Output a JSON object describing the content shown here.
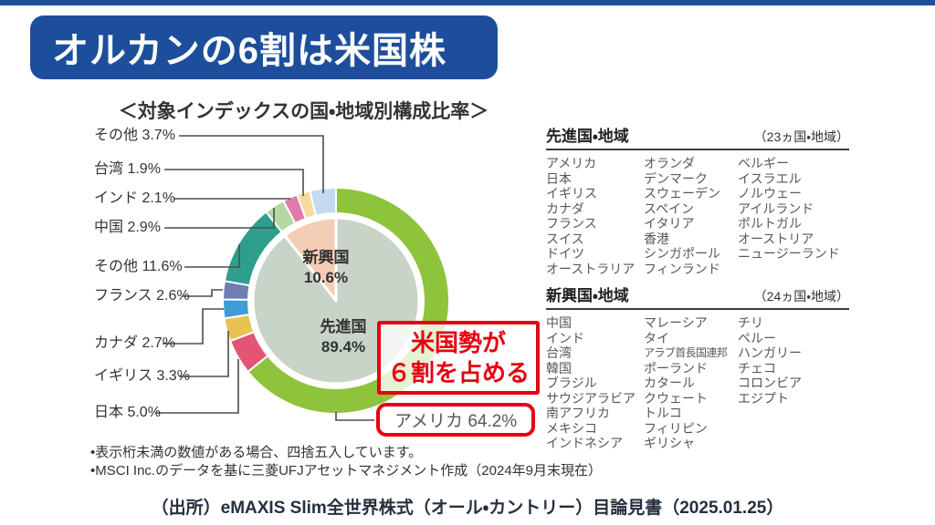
{
  "banner": {
    "title": "オルカンの6割は米国株"
  },
  "theme": {
    "banner_blue": "#1d4e9b",
    "alert_red": "#e60012",
    "leader_line_gray": "#4d4d4d",
    "body_text_gray": "#595757"
  },
  "chart_data": {
    "type": "donut",
    "title": "＜対象インデックスの国・地域別構成比率＞",
    "units": "%",
    "outer_segments": [
      {
        "label": "アメリカ",
        "value": 64.2,
        "color": "#8ec33c",
        "group": "先進国"
      },
      {
        "label": "日本",
        "value": 5.0,
        "color": "#e25573",
        "group": "先進国"
      },
      {
        "label": "イギリス",
        "value": 3.3,
        "color": "#e9c351",
        "group": "先進国"
      },
      {
        "label": "カナダ",
        "value": 2.7,
        "color": "#3e9cd7",
        "group": "先進国"
      },
      {
        "label": "フランス",
        "value": 2.6,
        "color": "#6f7db3",
        "group": "先進国"
      },
      {
        "label": "その他",
        "value": 11.6,
        "color": "#2f9e8c",
        "group": "先進国"
      },
      {
        "label": "中国",
        "value": 2.9,
        "color": "#b5d8a0",
        "group": "新興国"
      },
      {
        "label": "インド",
        "value": 2.1,
        "color": "#df7bab",
        "group": "新興国"
      },
      {
        "label": "台湾",
        "value": 1.9,
        "color": "#f5dc9c",
        "group": "新興国"
      },
      {
        "label": "その他",
        "value": 3.7,
        "color": "#c3daf0",
        "group": "新興国"
      }
    ],
    "inner_segments": [
      {
        "label": "先進国",
        "value": 89.4,
        "pct": "89.4%",
        "color": "#c7d4c7"
      },
      {
        "label": "新興国",
        "value": 10.6,
        "pct": "10.6%",
        "color": "#f4cdb6"
      }
    ],
    "callouts": [
      {
        "text": "その他 3.7%"
      },
      {
        "text": "台湾 1.9%"
      },
      {
        "text": "インド 2.1%"
      },
      {
        "text": "中国 2.9%"
      },
      {
        "text": "その他 11.6%"
      },
      {
        "text": "フランス 2.6%"
      },
      {
        "text": "カナダ 2.7%"
      },
      {
        "text": "イギリス 3.3%"
      },
      {
        "text": "日本 5.0%"
      }
    ],
    "america_label": "アメリカ 64.2%",
    "annotation": {
      "line1": "米国勢が",
      "line2": "６割を占める"
    }
  },
  "lists": {
    "developed": {
      "title": "先進国・地域",
      "count_note": "（23ヵ国・地域）",
      "columns": [
        [
          "アメリカ",
          "日本",
          "イギリス",
          "カナダ",
          "フランス",
          "スイス",
          "ドイツ",
          "オーストラリア"
        ],
        [
          "オランダ",
          "デンマーク",
          "スウェーデン",
          "スペイン",
          "イタリア",
          "香港",
          "シンガポール",
          "フィンランド"
        ],
        [
          "ベルギー",
          "イスラエル",
          "ノルウェー",
          "アイルランド",
          "ポルトガル",
          "オーストリア",
          "ニュージーランド"
        ]
      ]
    },
    "emerging": {
      "title": "新興国・地域",
      "count_note": "（24ヵ国・地域）",
      "columns": [
        [
          "中国",
          "インド",
          "台湾",
          "韓国",
          "ブラジル",
          "サウジアラビア",
          "南アフリカ",
          "メキシコ",
          "インドネシア"
        ],
        [
          "マレーシア",
          "タイ",
          "アラブ首長国連邦",
          "ポーランド",
          "カタール",
          "クウェート",
          "トルコ",
          "フィリピン",
          "ギリシャ"
        ],
        [
          "チリ",
          "ペルー",
          "ハンガリー",
          "チェコ",
          "コロンビア",
          "エジプト"
        ]
      ]
    }
  },
  "footnotes": [
    "•表示桁未満の数値がある場合、四捨五入しています。",
    "•MSCI Inc.のデータを基に三菱UFJアセットマネジメント作成（2024年9月末現在）"
  ],
  "source": "（出所）eMAXIS Slim全世界株式（オール・カントリー）目論見書（2025.01.25）"
}
